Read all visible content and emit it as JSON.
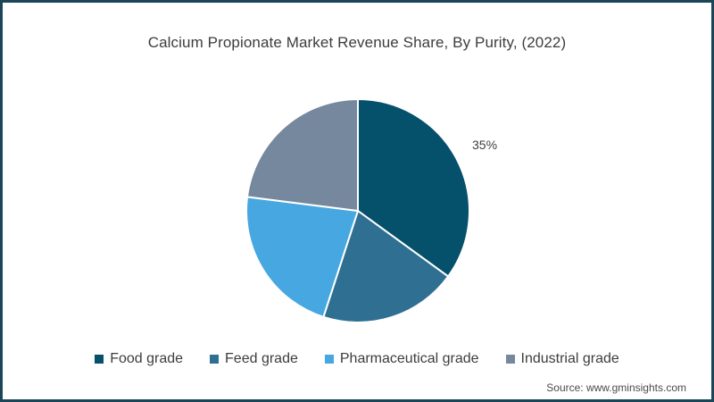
{
  "frame": {
    "border_color": "#1A4657",
    "background": "#FFFFFF"
  },
  "chart_data": {
    "type": "pie",
    "title": "Calcium Propionate Market Revenue Share, By Purity, (2022)",
    "start_angle_deg": 0,
    "direction": "clockwise",
    "legend_position": "bottom",
    "slice_border_color": "#FFFFFF",
    "categories": [
      "Food grade",
      "Feed grade",
      "Pharmaceutical grade",
      "Industrial grade"
    ],
    "values": [
      35,
      20,
      22,
      23
    ],
    "slices": [
      {
        "label": "Food grade",
        "value": 35,
        "color": "#05506B",
        "data_label": "35%"
      },
      {
        "label": "Feed grade",
        "value": 20,
        "color": "#2F6F92",
        "data_label": ""
      },
      {
        "label": "Pharmaceutical grade",
        "value": 22,
        "color": "#47A7E0",
        "data_label": ""
      },
      {
        "label": "Industrial grade",
        "value": 23,
        "color": "#76889D",
        "data_label": ""
      }
    ],
    "text_color": "#3D3D3D"
  },
  "source": {
    "text": "Source: www.gminsights.com"
  }
}
